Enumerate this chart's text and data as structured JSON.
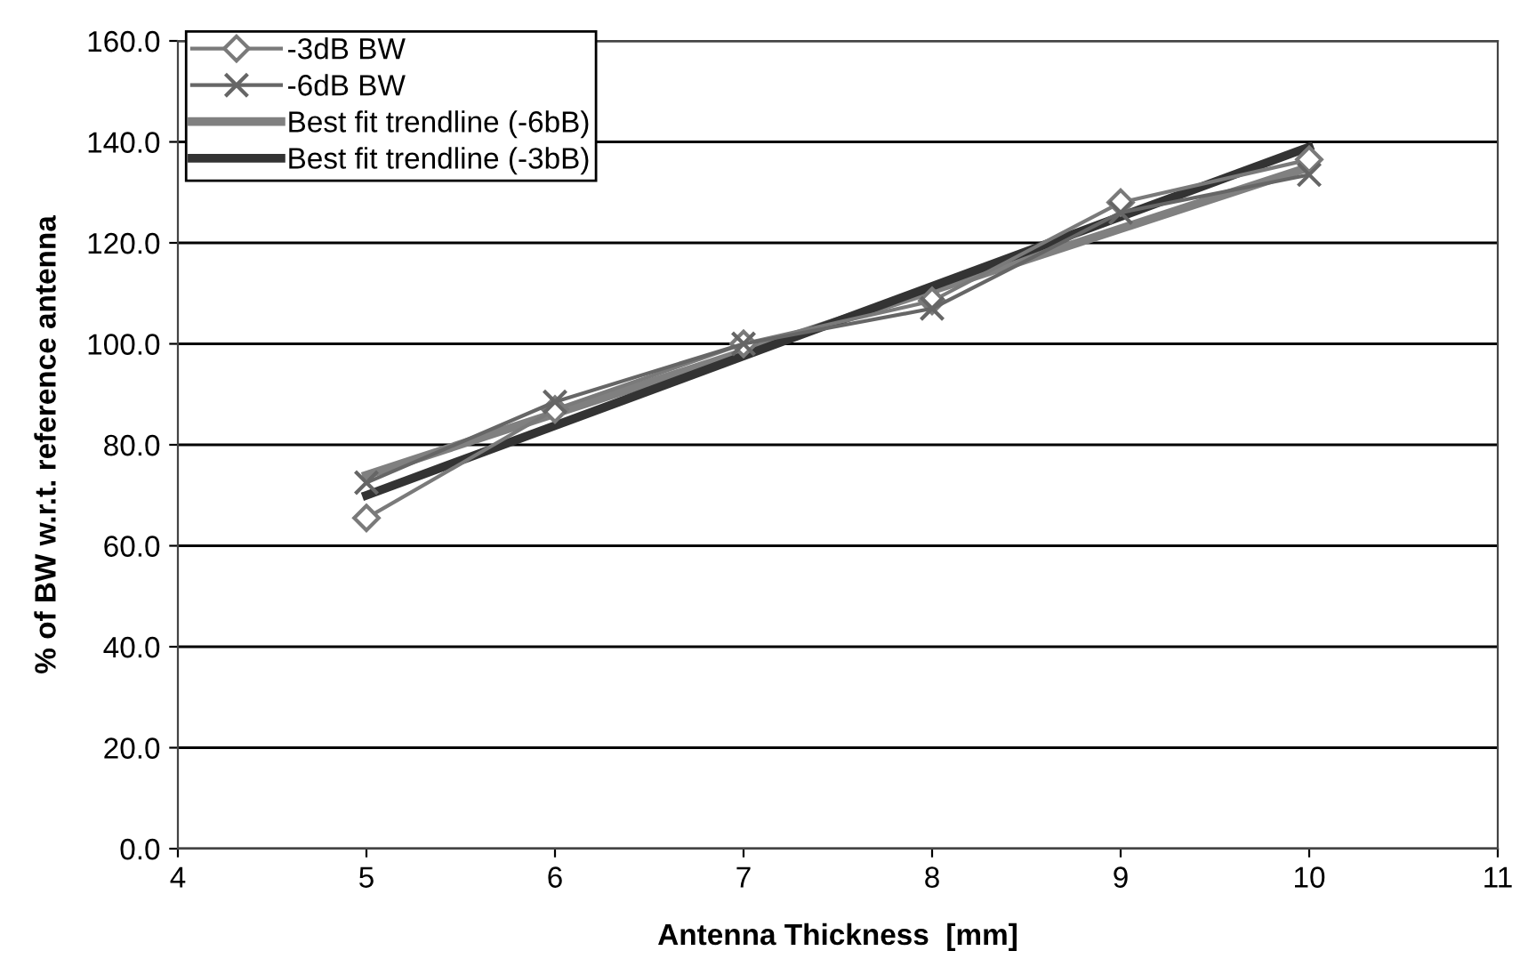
{
  "chart_data": {
    "type": "line",
    "xlabel": "Antenna Thickness  [mm]",
    "ylabel": "% of BW w.r.t. reference antenna",
    "xlim": [
      4,
      11
    ],
    "xticks": [
      4,
      5,
      6,
      7,
      8,
      9,
      10,
      11
    ],
    "ylim": [
      0,
      160
    ],
    "yticks": [
      {
        "value": 0,
        "label": "0.0"
      },
      {
        "value": 20,
        "label": "20.0"
      },
      {
        "value": 40,
        "label": "40.0"
      },
      {
        "value": 60,
        "label": "60.0"
      },
      {
        "value": 80,
        "label": "80.0"
      },
      {
        "value": 100,
        "label": "100.0"
      },
      {
        "value": 120,
        "label": "120.0"
      },
      {
        "value": 140,
        "label": "140.0"
      },
      {
        "value": 160,
        "label": "160.0"
      }
    ],
    "grid": "y",
    "legend": "top left",
    "series": [
      {
        "name": "-3dB BW",
        "color": "#7a7a7a",
        "marker": "diamond",
        "x": [
          5,
          6,
          7,
          8,
          9,
          10
        ],
        "values": [
          65.5,
          87,
          100,
          108.5,
          128,
          136.5
        ]
      },
      {
        "name": "-6dB BW",
        "color": "#666666",
        "marker": "cross",
        "x": [
          5,
          6,
          7,
          8,
          9,
          10
        ],
        "values": [
          72.5,
          88.5,
          100,
          107,
          126,
          133.5
        ]
      },
      {
        "name": "Best fit trendline (-6bB)",
        "color": "#808080",
        "marker": "none",
        "x": [
          5,
          10
        ],
        "values": [
          74,
          135
        ]
      },
      {
        "name": "Best fit trendline (-3bB)",
        "color": "#333333",
        "marker": "none",
        "x": [
          5,
          10
        ],
        "values": [
          70,
          139
        ]
      }
    ]
  }
}
